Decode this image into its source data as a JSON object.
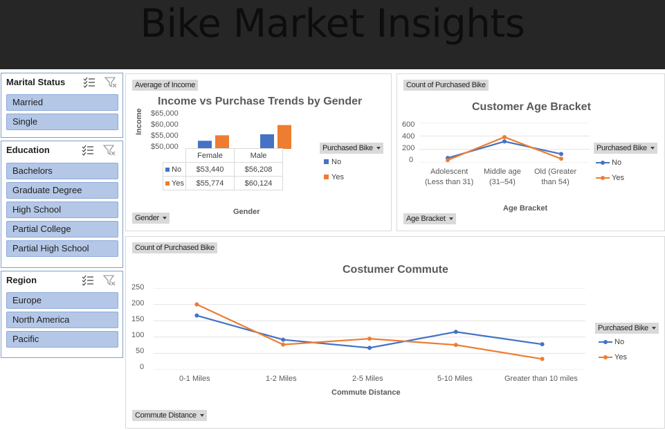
{
  "header": {
    "title": "Bike Market Insights"
  },
  "slicers": {
    "marital": {
      "title": "Marital Status",
      "items": [
        "Married",
        "Single"
      ]
    },
    "education": {
      "title": "Education",
      "items": [
        "Bachelors",
        "Graduate Degree",
        "High School",
        "Partial College",
        "Partial High School"
      ]
    },
    "region": {
      "title": "Region",
      "items": [
        "Europe",
        "North America",
        "Pacific"
      ]
    },
    "icons": [
      "multi-select-icon",
      "clear-filter-icon"
    ]
  },
  "colors": {
    "no": "#4472c4",
    "yes": "#ed7d31",
    "header": "#262626",
    "slicer_item": "#b4c7e7"
  },
  "income_chart": {
    "value_field": "Average of Income",
    "axis_field": "Gender",
    "legend_field": "Purchased Bike",
    "chart_data": {
      "type": "bar",
      "title": "Income vs Purchase Trends by Gender",
      "categories": [
        "Female",
        "Male"
      ],
      "series": [
        {
          "name": "No",
          "values": [
            53440,
            56208
          ],
          "labels": [
            "$53,440",
            "$56,208"
          ]
        },
        {
          "name": "Yes",
          "values": [
            55774,
            60124
          ],
          "labels": [
            "$55,774",
            "$60,124"
          ]
        }
      ],
      "xlabel": "Gender",
      "ylabel": "Income",
      "ylim": [
        50000,
        65000
      ],
      "yticks": [
        "$65,000",
        "$60,000",
        "$55,000",
        "$50,000"
      ]
    }
  },
  "age_chart": {
    "value_field": "Count of Purchased Bike",
    "axis_field": "Age Bracket",
    "legend_field": "Purchased Bike",
    "chart_data": {
      "type": "line",
      "title": "Customer Age Bracket",
      "categories": [
        [
          "Adolescent",
          "(Less than 31)"
        ],
        [
          "Middle age",
          "(31–54)"
        ],
        [
          "Old (Greater",
          "than 54)"
        ]
      ],
      "series": [
        {
          "name": "No",
          "values": [
            71,
            318,
            130
          ]
        },
        {
          "name": "Yes",
          "values": [
            39,
            383,
            59
          ]
        }
      ],
      "xlabel": "Age Bracket",
      "ylabel": "",
      "ylim": [
        0,
        600
      ],
      "yticks": [
        "600",
        "400",
        "200",
        "0"
      ]
    }
  },
  "commute_chart": {
    "value_field": "Count of Purchased Bike",
    "axis_field": "Commute Distance",
    "legend_field": "Purchased Bike",
    "chart_data": {
      "type": "line",
      "title": "Costumer Commute",
      "categories": [
        "0-1 Miles",
        "1-2 Miles",
        "2-5 Miles",
        "5-10 Miles",
        "Greater than 10 miles"
      ],
      "series": [
        {
          "name": "No",
          "values": [
            166,
            92,
            67,
            116,
            78
          ]
        },
        {
          "name": "Yes",
          "values": [
            200,
            77,
            95,
            76,
            33
          ]
        }
      ],
      "xlabel": "Commute Distance",
      "ylabel": "",
      "ylim": [
        0,
        250
      ],
      "yticks": [
        "250",
        "200",
        "150",
        "100",
        "50",
        "0"
      ]
    }
  }
}
